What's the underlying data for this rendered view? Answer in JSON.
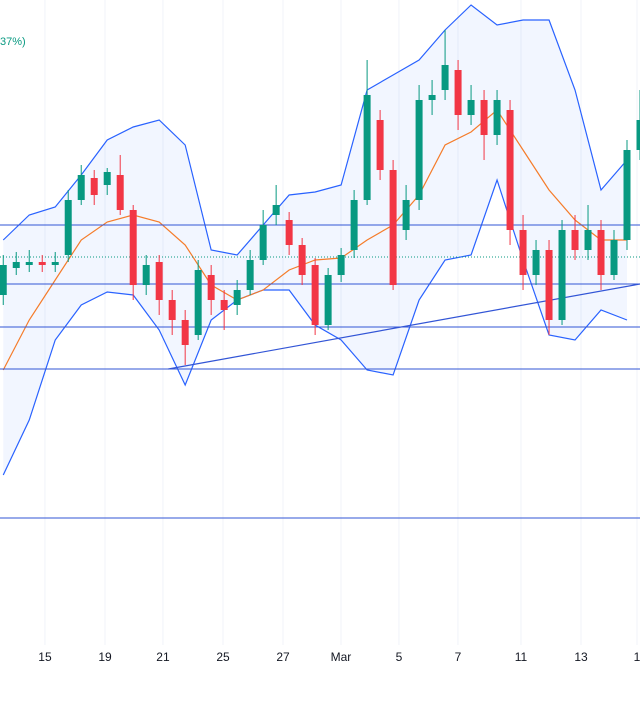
{
  "chart_data": {
    "type": "candlestick",
    "indicator_fragment": "37%)",
    "x": [
      0,
      1,
      2,
      3,
      4,
      5,
      6,
      7,
      8,
      9,
      10,
      11,
      12,
      13,
      14,
      15,
      16,
      17,
      18,
      19,
      20,
      21,
      22,
      23,
      24,
      25,
      26,
      27,
      28,
      29,
      30,
      31,
      32,
      33,
      34,
      35,
      36,
      37,
      38,
      39,
      40,
      41,
      42,
      43,
      44,
      45,
      46,
      47,
      48,
      49
    ],
    "open": [
      135.0,
      137.7,
      138.0,
      138.3,
      138.0,
      139.0,
      144.5,
      146.7,
      146.0,
      147.0,
      143.5,
      136.0,
      138.3,
      134.5,
      132.5,
      131.0,
      137.0,
      134.5,
      134.0,
      135.5,
      138.5,
      143.0,
      142.5,
      140.0,
      138.0,
      132.0,
      137.0,
      139.5,
      144.5,
      152.5,
      147.5,
      141.5,
      144.5,
      154.5,
      155.5,
      157.5,
      153.0,
      154.5,
      151.0,
      153.5,
      141.5,
      137.0,
      139.5,
      132.5,
      141.5,
      139.5,
      141.5,
      137.0,
      140.5,
      149.5
    ],
    "high": [
      139.0,
      139.3,
      139.5,
      139.0,
      139.3,
      145.5,
      148.0,
      147.5,
      147.7,
      149.0,
      144.0,
      139.0,
      139.0,
      135.5,
      133.5,
      138.5,
      138.0,
      135.5,
      136.5,
      139.5,
      143.5,
      146.0,
      143.3,
      140.7,
      138.7,
      137.7,
      139.7,
      145.5,
      158.5,
      153.5,
      148.5,
      146.0,
      156.0,
      156.5,
      161.5,
      158.5,
      156.0,
      155.5,
      155.5,
      154.5,
      143.0,
      140.5,
      140.5,
      142.5,
      143.0,
      144.0,
      142.5,
      141.5,
      150.5,
      155.5
    ],
    "low": [
      134.0,
      137.0,
      137.3,
      137.3,
      137.3,
      138.3,
      144.0,
      144.0,
      145.0,
      143.0,
      134.5,
      135.0,
      133.0,
      131.0,
      128.0,
      130.5,
      133.0,
      131.5,
      133.0,
      135.0,
      138.0,
      142.0,
      139.0,
      136.0,
      131.0,
      131.5,
      136.3,
      138.7,
      144.0,
      146.5,
      135.5,
      140.5,
      143.5,
      153.0,
      154.5,
      151.5,
      152.0,
      148.5,
      150.0,
      140.0,
      135.5,
      136.0,
      131.0,
      132.0,
      138.5,
      138.5,
      135.5,
      136.5,
      139.5,
      148.5
    ],
    "close": [
      138.0,
      138.3,
      138.3,
      138.0,
      138.3,
      144.5,
      147.0,
      145.0,
      147.3,
      143.5,
      136.0,
      138.0,
      134.5,
      132.5,
      130.0,
      137.5,
      134.5,
      133.5,
      135.5,
      138.5,
      142.0,
      144.0,
      140.0,
      137.0,
      132.0,
      137.0,
      139.0,
      144.5,
      155.0,
      147.5,
      136.0,
      144.5,
      154.5,
      155.0,
      158.0,
      153.0,
      154.5,
      151.0,
      154.5,
      141.5,
      137.0,
      139.5,
      132.5,
      141.5,
      139.5,
      141.5,
      137.0,
      140.5,
      149.5,
      152.5
    ],
    "up_color": "#089981",
    "down_color": "#f23645",
    "bands": {
      "x": [
        0,
        2,
        4,
        6,
        8,
        10,
        12,
        14,
        16,
        18,
        20,
        22,
        24,
        26,
        28,
        30,
        32,
        34,
        36,
        38,
        40,
        42,
        44,
        46,
        48
      ],
      "upper": [
        140.5,
        143.0,
        143.8,
        147.0,
        150.5,
        151.8,
        152.5,
        150.0,
        139.5,
        139.0,
        142.0,
        145.0,
        145.3,
        146.0,
        155.5,
        157.0,
        158.5,
        161.5,
        164.0,
        162.0,
        162.5,
        162.5,
        155.5,
        145.5,
        148.5
      ],
      "middle": [
        127.5,
        132.5,
        136.5,
        140.5,
        142.3,
        143.0,
        142.3,
        140.0,
        136.0,
        134.5,
        135.5,
        137.5,
        138.5,
        138.7,
        140.5,
        142.0,
        145.0,
        150.0,
        151.3,
        153.5,
        149.5,
        145.5,
        142.5,
        140.5,
        140.5
      ],
      "lower": [
        117.0,
        122.5,
        130.5,
        134.0,
        135.3,
        135.0,
        131.5,
        126.0,
        132.5,
        134.5,
        135.5,
        135.5,
        132.0,
        130.5,
        127.5,
        127.0,
        134.5,
        138.5,
        139.0,
        146.5,
        138.5,
        131.0,
        130.5,
        133.5,
        132.5
      ],
      "band_color": "#2962ff",
      "middle_color": "#f57c2a",
      "fill_color": "#2962ff"
    },
    "levels": [
      142.0,
      136.1,
      131.8,
      127.6,
      112.7
    ],
    "level_color": "#3255d6",
    "last_price": 138.8,
    "trendline": {
      "x": [
        12.7,
        49
      ],
      "y": [
        127.6,
        136.1
      ]
    },
    "xlim": [
      -0.25,
      49
    ],
    "ylim": [
      100,
      164.5
    ],
    "xticks": [
      {
        "value": 3.21,
        "label": "15"
      },
      {
        "value": 7.83,
        "label": "19"
      },
      {
        "value": 12.29,
        "label": "21"
      },
      {
        "value": 16.91,
        "label": "25"
      },
      {
        "value": 21.53,
        "label": "27"
      },
      {
        "value": 25.99,
        "label": "Mar"
      },
      {
        "value": 30.45,
        "label": "5"
      },
      {
        "value": 34.99,
        "label": "7"
      },
      {
        "value": 39.84,
        "label": "11"
      },
      {
        "value": 44.46,
        "label": "13"
      },
      {
        "value": 48.77,
        "label": "1"
      }
    ],
    "grid": true
  }
}
